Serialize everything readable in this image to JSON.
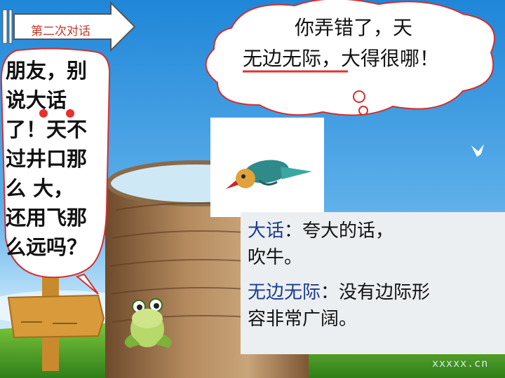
{
  "banner": {
    "label": "第二次对话"
  },
  "frog_speech": {
    "lines": [
      "朋友，别",
      "说大话",
      "了！天不",
      "过井口那",
      "么 大，",
      "还用飞那",
      "么远吗？"
    ]
  },
  "bird_speech": {
    "line1": "你弄错了，天",
    "line2_term": "无边无际",
    "line2_rest": "，大得很哪！"
  },
  "definitions": {
    "term1": "大话",
    "def1_part1": "：夸大的话，",
    "def1_part2": "吹牛。",
    "term2": "无边无际",
    "def2_part1": "：没有边际形",
    "def2_part2": "容非常广阔。"
  },
  "watermark": "xxxxx.cn",
  "colors": {
    "sky_top": "#1f86d8",
    "grass": "#3f9a1f",
    "term_blue": "#1a3c8f",
    "banner_red": "#c0392b",
    "underline_red": "#e5322d"
  }
}
